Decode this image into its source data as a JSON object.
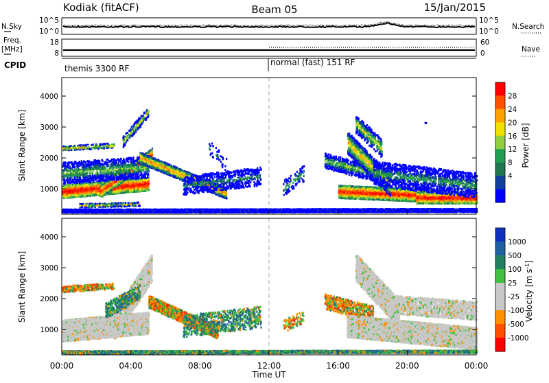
{
  "header": {
    "radar": "Kodiak (fitACF)",
    "beam": "Beam 05",
    "date": "15/Jan/2015"
  },
  "left_labels": {
    "nsky": "N.Sky",
    "freq_top": "Freq.",
    "freq_unit": "[MHz]",
    "cpid": "CPID"
  },
  "right_labels": {
    "nsearch": "N.Search",
    "nave": "Nave"
  },
  "noise_panel": {
    "left_ticks": [
      "10^5",
      "10^0"
    ],
    "right_ticks": [
      "10^5",
      "10^0"
    ]
  },
  "freq_panel": {
    "left_ticks": [
      "18",
      "8"
    ],
    "right_ticks": [
      "60",
      "0"
    ]
  },
  "cpid_panel": {
    "modes": [
      "themis 3300 RF",
      "normal (fast) 151 RF"
    ]
  },
  "x_axis": {
    "label": "Time UT",
    "ticks": [
      "00:00",
      "04:00",
      "08:00",
      "12:00",
      "16:00",
      "20:00",
      "00:00"
    ]
  },
  "chart_data": [
    {
      "type": "heatmap",
      "title": "",
      "xlabel": "Time UT",
      "ylabel": "Slant Range [km]",
      "xlim": [
        0,
        24
      ],
      "ylim": [
        180,
        4600
      ],
      "y_ticks": [
        1000,
        2000,
        3000,
        4000
      ],
      "colorbar": {
        "label": "Power [dB]",
        "ticks": [
          "28",
          "24",
          "20",
          "16",
          "12",
          "8",
          "4"
        ],
        "colors": [
          "#ff0000",
          "#ff5000",
          "#ffa000",
          "#f0e000",
          "#90d040",
          "#20a050",
          "#207850",
          "#1040a0",
          "#0000ff"
        ]
      }
    },
    {
      "type": "heatmap",
      "title": "",
      "xlabel": "Time UT",
      "ylabel": "Slant Range [km]",
      "xlim": [
        0,
        24
      ],
      "ylim": [
        180,
        4600
      ],
      "y_ticks": [
        1000,
        2000,
        3000,
        4000
      ],
      "colorbar": {
        "label": "Velocity [m s^-1]",
        "ticks": [
          "1000",
          "500",
          "100",
          "25",
          "-25",
          "-100",
          "-500",
          "-1000"
        ],
        "colors": [
          "#1030c0",
          "#2060a0",
          "#208060",
          "#40c040",
          "#c8c8c8",
          "#c8c8c8",
          "#ff9000",
          "#ff5000",
          "#ff0000"
        ]
      }
    }
  ]
}
